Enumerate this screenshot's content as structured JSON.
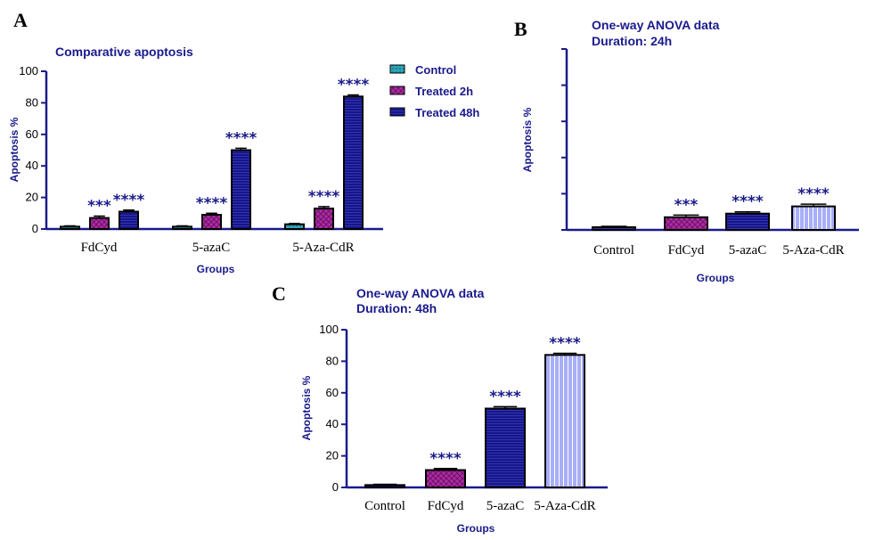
{
  "colors": {
    "axis": "#1a1a8c",
    "control": "#2aa6b8",
    "treated_2h": "#b02aa6",
    "treated_48h": "#16168a",
    "aza_cdr_48h": "#a8aef8",
    "text_blue": "#1a1a8c"
  },
  "chart_data": [
    {
      "panel": "A",
      "type": "bar",
      "title": "Comparative apoptosis",
      "xlabel": "Groups",
      "ylabel": "Apoptosis %",
      "ylim": [
        0,
        100
      ],
      "yticks": [
        0,
        20,
        40,
        60,
        80,
        100
      ],
      "categories": [
        "FdCyd",
        "5-azaC",
        "5-Aza-CdR"
      ],
      "legend_position": "top-right",
      "series": [
        {
          "name": "Control",
          "values": [
            1.5,
            1.5,
            3.0
          ],
          "errors": [
            0.5,
            0.5,
            0.5
          ],
          "annotations": [
            "",
            "",
            ""
          ]
        },
        {
          "name": "Treated 2h",
          "values": [
            7,
            9,
            13
          ],
          "errors": [
            1.2,
            1.0,
            1.2
          ],
          "annotations": [
            "***",
            "****",
            "****"
          ]
        },
        {
          "name": "Treated 48h",
          "values": [
            11,
            50,
            84
          ],
          "errors": [
            1.0,
            1.2,
            1.0
          ],
          "annotations": [
            "****",
            "****",
            "****"
          ]
        }
      ]
    },
    {
      "panel": "B",
      "type": "bar",
      "title": "One-way ANOVA data",
      "subtitle": "Duration: 24h",
      "xlabel": "Groups",
      "ylabel": "Apoptosis %",
      "ylim": [
        0,
        100
      ],
      "categories": [
        "Control",
        "FdCyd",
        "5-azaC",
        "5-Aza-CdR"
      ],
      "values": [
        1.5,
        7,
        9,
        13
      ],
      "errors": [
        0.5,
        1.2,
        1.0,
        1.2
      ],
      "annotations": [
        "",
        "***",
        "****",
        "****"
      ]
    },
    {
      "panel": "C",
      "type": "bar",
      "title": "One-way ANOVA data",
      "subtitle": "Duration: 48h",
      "xlabel": "Groups",
      "ylabel": "Apoptosis %",
      "ylim": [
        0,
        100
      ],
      "yticks": [
        0,
        20,
        40,
        60,
        80,
        100
      ],
      "categories": [
        "Control",
        "FdCyd",
        "5-azaC",
        "5-Aza-CdR"
      ],
      "values": [
        1.5,
        11,
        50,
        84
      ],
      "errors": [
        0.5,
        1.0,
        1.2,
        1.0
      ],
      "annotations": [
        "",
        "****",
        "****",
        "****"
      ]
    }
  ]
}
